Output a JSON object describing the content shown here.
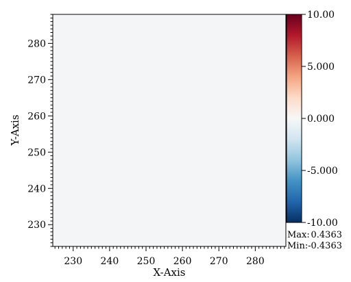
{
  "chart_data": {
    "type": "heatmap",
    "title": "",
    "xlabel": "X-Axis",
    "ylabel": "Y-Axis",
    "xlim": [
      224.4,
      288.4
    ],
    "ylim": [
      224.0,
      288.0
    ],
    "x_ticks": [
      230,
      240,
      250,
      260,
      270,
      280
    ],
    "y_ticks": [
      230,
      240,
      250,
      260,
      270,
      280
    ],
    "x_minor_step": 1,
    "y_minor_step": 1,
    "field_color": "#f4f5f7",
    "colorbar": {
      "colormap": "RdBu_r",
      "colors": [
        "#053061",
        "#2166ac",
        "#4393c3",
        "#92c5de",
        "#d1e5f0",
        "#f7f7f7",
        "#fddbc7",
        "#f4a582",
        "#d6604d",
        "#b2182b",
        "#67001f"
      ],
      "vmin": -10.0,
      "vmax": 10.0,
      "ticks": [
        10.0,
        5.0,
        0.0,
        -5.0,
        -10.0
      ],
      "tick_labels": [
        "10.00",
        "5.000",
        "0.000",
        "-5.000",
        "-10.00"
      ]
    },
    "stats": {
      "max_label": "Max:",
      "max_value": "0.4363",
      "min_label": "Min:",
      "min_value": "-0.4363"
    }
  }
}
